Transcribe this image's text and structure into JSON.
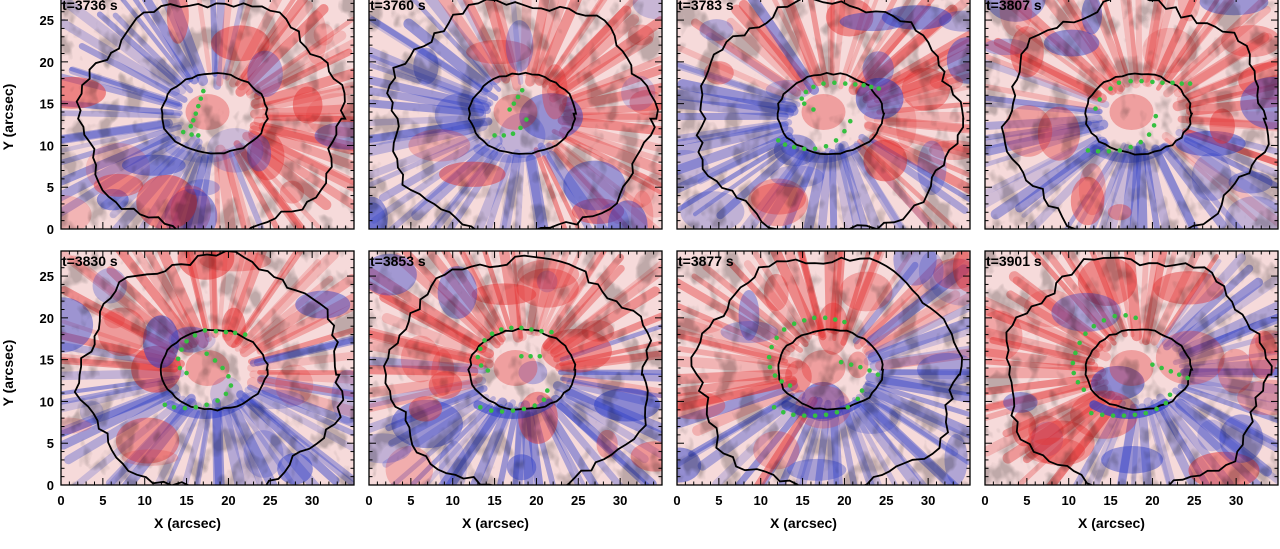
{
  "chart_data": {
    "type": "heatmap",
    "xlabel": "X (arcsec)",
    "ylabel": "Y (arcsec)",
    "xlim": [
      0,
      35
    ],
    "ylim": [
      0,
      28
    ],
    "xticks": [
      0,
      5,
      10,
      15,
      20,
      25,
      30
    ],
    "yticks": [
      0,
      5,
      10,
      15,
      20,
      25
    ],
    "colors": {
      "positive": "#e33030",
      "negative": "#2e3fc8",
      "zero": "#ffffff",
      "contour": "#000000",
      "markers": "#35c040"
    },
    "panels": [
      {
        "title": "t=3736 s",
        "markers": [
          [
            17,
            16.5
          ],
          [
            16.7,
            15.6
          ],
          [
            16.4,
            14.7
          ],
          [
            16.1,
            13.8
          ],
          [
            15.8,
            13
          ],
          [
            15.5,
            12.3
          ],
          [
            14.6,
            11.6
          ],
          [
            15.6,
            11.3
          ],
          [
            16.4,
            11.2
          ]
        ]
      },
      {
        "title": "t=3760 s",
        "markers": [
          [
            18.3,
            16.6
          ],
          [
            17.8,
            15.8
          ],
          [
            17.3,
            15
          ],
          [
            16.8,
            14.3
          ],
          [
            18.8,
            13.1
          ],
          [
            18.1,
            12.1
          ],
          [
            17.2,
            11.4
          ],
          [
            16.1,
            11.2
          ],
          [
            15,
            11.2
          ]
        ]
      },
      {
        "title": "t=3783 s",
        "markers": [
          [
            16.3,
            17
          ],
          [
            17.5,
            17.4
          ],
          [
            18.8,
            17.5
          ],
          [
            20.1,
            17.4
          ],
          [
            21.3,
            17.3
          ],
          [
            22.3,
            17.2
          ],
          [
            23.2,
            17
          ],
          [
            24.1,
            16.8
          ],
          [
            15.4,
            16.4
          ],
          [
            14.9,
            15.6
          ],
          [
            15.2,
            15
          ],
          [
            16.3,
            14.3
          ],
          [
            20.7,
            12.9
          ],
          [
            20,
            11.7
          ],
          [
            19,
            10.6
          ],
          [
            17.8,
            9.9
          ],
          [
            16.5,
            9.6
          ],
          [
            15.2,
            9.6
          ],
          [
            14,
            9.8
          ],
          [
            12.9,
            10.1
          ],
          [
            12.1,
            10.6
          ]
        ]
      },
      {
        "title": "t=3807 s",
        "markers": [
          [
            16,
            17.5
          ],
          [
            17.4,
            17.7
          ],
          [
            18.7,
            17.7
          ],
          [
            20,
            17.6
          ],
          [
            21.2,
            17.5
          ],
          [
            22.4,
            17.5
          ],
          [
            23.5,
            17.4
          ],
          [
            24.5,
            17.4
          ],
          [
            15,
            16.8
          ],
          [
            13.7,
            15.5
          ],
          [
            13.2,
            14.4
          ],
          [
            20.4,
            13.5
          ],
          [
            20.2,
            12.4
          ],
          [
            19.6,
            11.3
          ],
          [
            18.6,
            10.4
          ],
          [
            17.4,
            9.8
          ],
          [
            16.1,
            9.4
          ],
          [
            14.8,
            9.3
          ],
          [
            13.5,
            9.3
          ],
          [
            12.3,
            9.4
          ]
        ]
      },
      {
        "title": "t=3830 s",
        "markers": [
          [
            17.2,
            18.5
          ],
          [
            18.5,
            18.4
          ],
          [
            19.7,
            18.3
          ],
          [
            20.8,
            18.2
          ],
          [
            22,
            18
          ],
          [
            16,
            17.9
          ],
          [
            15,
            17.2
          ],
          [
            14.4,
            16.2
          ],
          [
            14,
            15.1
          ],
          [
            14.2,
            14
          ],
          [
            15,
            13.4
          ],
          [
            17.4,
            15.7
          ],
          [
            18.4,
            14.9
          ],
          [
            19.3,
            14
          ],
          [
            20,
            13
          ],
          [
            20.3,
            11.9
          ],
          [
            19.7,
            10.9
          ],
          [
            18.7,
            10.1
          ],
          [
            17.4,
            9.6
          ],
          [
            16.1,
            9.3
          ],
          [
            14.8,
            9.2
          ],
          [
            13.5,
            9.3
          ],
          [
            12.4,
            9.6
          ]
        ]
      },
      {
        "title": "t=3853 s",
        "markers": [
          [
            15.8,
            18.6
          ],
          [
            17,
            18.8
          ],
          [
            18.2,
            18.8
          ],
          [
            19.4,
            18.6
          ],
          [
            20.6,
            18.4
          ],
          [
            21.8,
            18.3
          ],
          [
            14.7,
            18.1
          ],
          [
            13.8,
            17.3
          ],
          [
            13.3,
            16.3
          ],
          [
            13,
            15.3
          ],
          [
            13.4,
            14.3
          ],
          [
            14.2,
            13.7
          ],
          [
            18.2,
            15.4
          ],
          [
            19.3,
            15.4
          ],
          [
            20.4,
            15.4
          ],
          [
            21.3,
            11.3
          ],
          [
            20.9,
            10.2
          ],
          [
            19.8,
            9.5
          ],
          [
            18.5,
            9.1
          ],
          [
            17.2,
            8.9
          ],
          [
            15.9,
            8.8
          ],
          [
            14.6,
            8.9
          ],
          [
            13.3,
            9.3
          ]
        ]
      },
      {
        "title": "t=3877 s",
        "markers": [
          [
            15.2,
            19.7
          ],
          [
            16.4,
            20
          ],
          [
            17.7,
            20
          ],
          [
            18.9,
            19.8
          ],
          [
            20,
            19.5
          ],
          [
            14,
            19.3
          ],
          [
            12.8,
            18.6
          ],
          [
            11.9,
            17.6
          ],
          [
            11.3,
            16.5
          ],
          [
            11,
            15.3
          ],
          [
            11.1,
            14.1
          ],
          [
            11.7,
            13.1
          ],
          [
            12.5,
            12.4
          ],
          [
            13.5,
            11.9
          ],
          [
            19.6,
            14.7
          ],
          [
            20.8,
            14.4
          ],
          [
            21.9,
            14.1
          ],
          [
            23,
            13.7
          ],
          [
            24,
            13.2
          ],
          [
            22.1,
            11.3
          ],
          [
            21.6,
            10.3
          ],
          [
            20.4,
            9.3
          ],
          [
            19.1,
            8.7
          ],
          [
            17.8,
            8.4
          ],
          [
            16.5,
            8.3
          ],
          [
            15.2,
            8.3
          ],
          [
            13.9,
            8.4
          ],
          [
            12.7,
            8.7
          ],
          [
            11.6,
            9.3
          ]
        ]
      },
      {
        "title": "t=3901 s",
        "markers": [
          [
            14.2,
            19.7
          ],
          [
            15.5,
            20.2
          ],
          [
            16.8,
            20.3
          ],
          [
            18,
            20
          ],
          [
            13,
            19
          ],
          [
            12,
            18.1
          ],
          [
            11.3,
            17
          ],
          [
            10.8,
            15.8
          ],
          [
            10.5,
            14.6
          ],
          [
            10.6,
            13.4
          ],
          [
            11.1,
            12.3
          ],
          [
            11.8,
            11.4
          ],
          [
            20,
            14.4
          ],
          [
            21.1,
            14
          ],
          [
            22.2,
            13.6
          ],
          [
            23.2,
            13.2
          ],
          [
            24.2,
            12.8
          ],
          [
            22.1,
            10.8
          ],
          [
            21.6,
            9.8
          ],
          [
            20.5,
            9.1
          ],
          [
            19.2,
            8.6
          ],
          [
            17.9,
            8.4
          ],
          [
            16.6,
            8.3
          ],
          [
            15.3,
            8.3
          ],
          [
            14,
            8.4
          ],
          [
            12.7,
            8.6
          ]
        ]
      }
    ]
  }
}
